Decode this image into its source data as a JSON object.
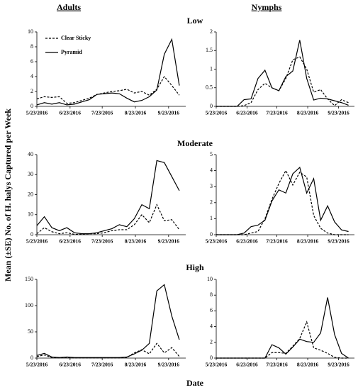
{
  "column_titles": [
    "Adults",
    "Nymphs"
  ],
  "row_titles": [
    "Low",
    "Moderate",
    "High"
  ],
  "ylabel": "Mean (±SE) No. of H. halys Captured per Week",
  "xlabel": "Date",
  "chart_data": [
    {
      "type": "line",
      "legend": true,
      "x": [
        "2016-05-23",
        "2016-05-30",
        "2016-06-06",
        "2016-06-13",
        "2016-06-20",
        "2016-06-27",
        "2016-07-04",
        "2016-07-11",
        "2016-07-18",
        "2016-07-25",
        "2016-08-01",
        "2016-08-08",
        "2016-08-15",
        "2016-08-22",
        "2016-08-29",
        "2016-09-05",
        "2016-09-12",
        "2016-09-19",
        "2016-09-26",
        "2016-10-03"
      ],
      "xlim": [
        "2016-05-23",
        "2016-10-09"
      ],
      "xticks": [
        {
          "value": "2016-05-23",
          "label": "5/23/2016"
        },
        {
          "value": "2016-06-23",
          "label": "6/23/2016"
        },
        {
          "value": "2016-07-23",
          "label": "7/23/2016"
        },
        {
          "value": "2016-08-23",
          "label": "8/23/2016"
        },
        {
          "value": "2016-09-23",
          "label": "9/23/2016"
        }
      ],
      "ylim": [
        0,
        10
      ],
      "yticks": [
        0,
        2,
        4,
        6,
        8,
        10
      ],
      "series": [
        {
          "name": "Clear Sticky",
          "color": "#000000",
          "style": "dashed",
          "values": [
            1.0,
            1.3,
            1.2,
            1.3,
            0.4,
            0.5,
            0.8,
            1.1,
            1.6,
            1.8,
            2.0,
            2.1,
            2.3,
            1.8,
            2.0,
            1.5,
            2.3,
            4.0,
            2.8,
            1.5
          ]
        },
        {
          "name": "Pyramid",
          "color": "#000000",
          "style": "solid",
          "values": [
            0.2,
            0.5,
            0.3,
            0.5,
            0.2,
            0.3,
            0.6,
            0.9,
            1.6,
            1.7,
            1.8,
            1.7,
            1.1,
            0.6,
            0.8,
            1.3,
            2.2,
            7.0,
            9.0,
            2.8
          ]
        }
      ]
    },
    {
      "type": "line",
      "x": [
        "2016-05-23",
        "2016-05-30",
        "2016-06-06",
        "2016-06-13",
        "2016-06-20",
        "2016-06-27",
        "2016-07-04",
        "2016-07-11",
        "2016-07-18",
        "2016-07-25",
        "2016-08-01",
        "2016-08-08",
        "2016-08-15",
        "2016-08-22",
        "2016-08-29",
        "2016-09-05",
        "2016-09-12",
        "2016-09-19",
        "2016-09-26",
        "2016-10-03"
      ],
      "xlim": [
        "2016-05-23",
        "2016-10-09"
      ],
      "xticks": [
        {
          "value": "2016-05-23",
          "label": "5/23/2016"
        },
        {
          "value": "2016-06-23",
          "label": "6/23/2016"
        },
        {
          "value": "2016-07-23",
          "label": "7/23/2016"
        },
        {
          "value": "2016-08-23",
          "label": "8/23/2016"
        },
        {
          "value": "2016-09-23",
          "label": "9/23/2016"
        }
      ],
      "ylim": [
        0,
        2
      ],
      "yticks": [
        0,
        0.5,
        1,
        1.5,
        2
      ],
      "series": [
        {
          "color": "#000000",
          "style": "dashed",
          "values": [
            0,
            0,
            0,
            0,
            0.02,
            0.1,
            0.45,
            0.62,
            0.5,
            0.42,
            0.75,
            1.25,
            1.33,
            1.0,
            0.38,
            0.45,
            0.2,
            0.02,
            0.18,
            0.1
          ]
        },
        {
          "color": "#000000",
          "style": "solid",
          "values": [
            0,
            0,
            0,
            0,
            0.18,
            0.2,
            0.75,
            0.97,
            0.5,
            0.42,
            0.8,
            0.95,
            1.78,
            0.75,
            0.17,
            0.22,
            0.2,
            0.15,
            0.1,
            0.03
          ]
        }
      ]
    },
    {
      "type": "line",
      "x": [
        "2016-05-23",
        "2016-05-30",
        "2016-06-06",
        "2016-06-13",
        "2016-06-20",
        "2016-06-27",
        "2016-07-04",
        "2016-07-11",
        "2016-07-18",
        "2016-07-25",
        "2016-08-01",
        "2016-08-08",
        "2016-08-15",
        "2016-08-22",
        "2016-08-29",
        "2016-09-05",
        "2016-09-12",
        "2016-09-19",
        "2016-09-26",
        "2016-10-03"
      ],
      "xlim": [
        "2016-05-23",
        "2016-10-09"
      ],
      "xticks": [
        {
          "value": "2016-05-23",
          "label": "5/23/2016"
        },
        {
          "value": "2016-06-23",
          "label": "6/23/2016"
        },
        {
          "value": "2016-07-23",
          "label": "7/23/2016"
        },
        {
          "value": "2016-08-23",
          "label": "8/23/2016"
        },
        {
          "value": "2016-09-23",
          "label": "9/23/2016"
        }
      ],
      "ylim": [
        0,
        40
      ],
      "yticks": [
        0,
        10,
        20,
        30,
        40
      ],
      "series": [
        {
          "color": "#000000",
          "style": "dashed",
          "values": [
            0.5,
            3.5,
            1.5,
            0.5,
            1,
            0.2,
            0.2,
            0.5,
            0.5,
            1,
            2,
            2.5,
            2.5,
            5,
            10,
            6,
            15,
            7,
            7.5,
            2.5
          ]
        },
        {
          "color": "#000000",
          "style": "solid",
          "values": [
            4.5,
            9,
            3.5,
            2,
            3.5,
            1,
            0.5,
            0.5,
            1,
            2,
            3,
            5,
            4,
            8,
            15,
            13,
            37,
            36,
            29,
            22
          ]
        }
      ]
    },
    {
      "type": "line",
      "x": [
        "2016-05-23",
        "2016-05-30",
        "2016-06-06",
        "2016-06-13",
        "2016-06-20",
        "2016-06-27",
        "2016-07-04",
        "2016-07-11",
        "2016-07-18",
        "2016-07-25",
        "2016-08-01",
        "2016-08-08",
        "2016-08-15",
        "2016-08-22",
        "2016-08-29",
        "2016-09-05",
        "2016-09-12",
        "2016-09-19",
        "2016-09-26",
        "2016-10-03"
      ],
      "xlim": [
        "2016-05-23",
        "2016-10-09"
      ],
      "xticks": [
        {
          "value": "2016-05-23",
          "label": "5/23/2016"
        },
        {
          "value": "2016-06-23",
          "label": "6/23/2016"
        },
        {
          "value": "2016-07-23",
          "label": "7/23/2016"
        },
        {
          "value": "2016-08-23",
          "label": "8/23/2016"
        },
        {
          "value": "2016-09-23",
          "label": "9/23/2016"
        }
      ],
      "ylim": [
        0,
        5
      ],
      "yticks": [
        0,
        1,
        2,
        3,
        4,
        5
      ],
      "series": [
        {
          "color": "#000000",
          "style": "dashed",
          "values": [
            0,
            0,
            0,
            0,
            0,
            0.1,
            0.2,
            1,
            2.2,
            3.2,
            4.0,
            3.1,
            3.9,
            3.6,
            1.2,
            0.4,
            0.1,
            0,
            0,
            0
          ]
        },
        {
          "color": "#000000",
          "style": "solid",
          "values": [
            0,
            0,
            0,
            0,
            0.1,
            0.5,
            0.6,
            0.9,
            2.1,
            2.8,
            2.6,
            3.8,
            4.2,
            2.6,
            3.5,
            0.9,
            1.8,
            0.8,
            0.3,
            0.2
          ]
        }
      ]
    },
    {
      "type": "line",
      "x": [
        "2016-05-23",
        "2016-05-30",
        "2016-06-06",
        "2016-06-13",
        "2016-06-20",
        "2016-06-27",
        "2016-07-04",
        "2016-07-11",
        "2016-07-18",
        "2016-07-25",
        "2016-08-01",
        "2016-08-08",
        "2016-08-15",
        "2016-08-22",
        "2016-08-29",
        "2016-09-05",
        "2016-09-12",
        "2016-09-19",
        "2016-09-26",
        "2016-10-03"
      ],
      "xlim": [
        "2016-05-23",
        "2016-10-09"
      ],
      "xticks": [
        {
          "value": "2016-05-23",
          "label": "5/23/2016"
        },
        {
          "value": "2016-06-23",
          "label": "6/23/2016"
        },
        {
          "value": "2016-07-23",
          "label": "7/23/2016"
        },
        {
          "value": "2016-08-23",
          "label": "8/23/2016"
        },
        {
          "value": "2016-09-23",
          "label": "9/23/2016"
        }
      ],
      "ylim": [
        0,
        150
      ],
      "yticks": [
        0,
        50,
        100,
        150
      ],
      "series": [
        {
          "color": "#000000",
          "style": "dashed",
          "values": [
            3,
            6,
            1,
            0.5,
            1,
            0.5,
            0.5,
            0.5,
            0.5,
            0.5,
            0.5,
            0.5,
            1,
            10,
            16,
            8,
            28,
            10,
            20,
            3
          ]
        },
        {
          "color": "#000000",
          "style": "solid",
          "values": [
            5,
            9,
            2,
            1,
            2,
            1,
            1,
            1,
            1,
            1,
            1,
            1,
            2,
            8,
            15,
            28,
            128,
            140,
            80,
            35
          ]
        }
      ]
    },
    {
      "type": "line",
      "x": [
        "2016-05-23",
        "2016-05-30",
        "2016-06-06",
        "2016-06-13",
        "2016-06-20",
        "2016-06-27",
        "2016-07-04",
        "2016-07-11",
        "2016-07-18",
        "2016-07-25",
        "2016-08-01",
        "2016-08-08",
        "2016-08-15",
        "2016-08-22",
        "2016-08-29",
        "2016-09-05",
        "2016-09-12",
        "2016-09-19",
        "2016-09-26",
        "2016-10-03"
      ],
      "xlim": [
        "2016-05-23",
        "2016-10-09"
      ],
      "xticks": [
        {
          "value": "2016-05-23",
          "label": "5/23/2016"
        },
        {
          "value": "2016-06-23",
          "label": "6/23/2016"
        },
        {
          "value": "2016-07-23",
          "label": "7/23/2016"
        },
        {
          "value": "2016-08-23",
          "label": "8/23/2016"
        },
        {
          "value": "2016-09-23",
          "label": "9/23/2016"
        }
      ],
      "ylim": [
        0,
        10
      ],
      "yticks": [
        0,
        2,
        4,
        6,
        8,
        10
      ],
      "series": [
        {
          "color": "#000000",
          "style": "dashed",
          "values": [
            0,
            0,
            0,
            0,
            0,
            0,
            0,
            0,
            0.7,
            0.7,
            0.6,
            1.5,
            2.5,
            4.6,
            1.3,
            1.0,
            0.6,
            0.1,
            0,
            0
          ]
        },
        {
          "color": "#000000",
          "style": "solid",
          "values": [
            0,
            0,
            0,
            0,
            0,
            0,
            0,
            0,
            1.7,
            1.3,
            0.5,
            1.4,
            2.4,
            2.1,
            2.0,
            3.2,
            7.7,
            3.0,
            0.6,
            0
          ]
        }
      ]
    }
  ]
}
